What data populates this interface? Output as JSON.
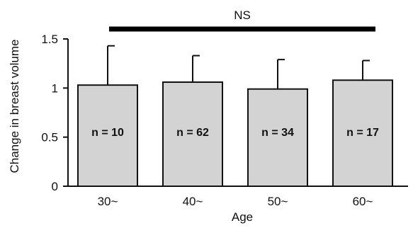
{
  "chart_data": {
    "type": "bar",
    "categories": [
      "30~",
      "40~",
      "50~",
      "60~"
    ],
    "values": [
      1.03,
      1.06,
      0.99,
      1.08
    ],
    "errors": [
      0.4,
      0.27,
      0.3,
      0.2
    ],
    "bar_labels": [
      "n = 10",
      "n = 62",
      "n = 34",
      "n = 17"
    ],
    "xlabel": "Age",
    "ylabel": "Change in breast volume",
    "ylim": [
      0,
      1.5
    ],
    "yticks": [
      "0",
      "0.5",
      "1",
      "1.5"
    ],
    "significance": "NS",
    "grid": false,
    "bar_color": "#d3d3d3",
    "edge_color": "#111111"
  }
}
